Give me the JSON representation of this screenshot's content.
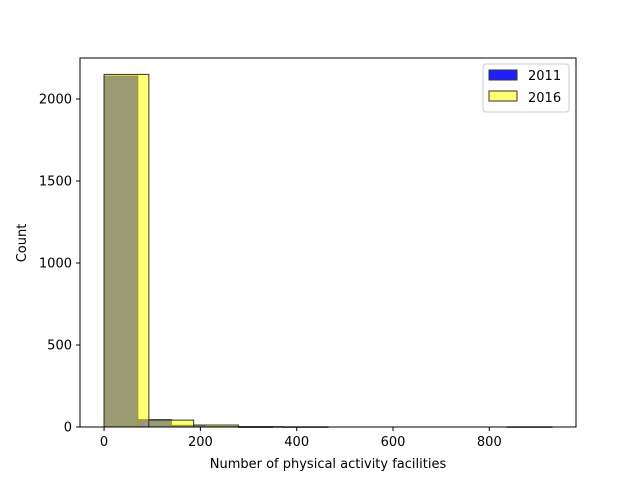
{
  "chart_data": {
    "type": "bar",
    "title": "",
    "xlabel": "Number of physical activity facilities",
    "ylabel": "Count",
    "xlim": [
      -50,
      980
    ],
    "ylim": [
      0,
      2250
    ],
    "xticks": [
      0,
      200,
      400,
      600,
      800
    ],
    "yticks": [
      0,
      500,
      1000,
      1500,
      2000
    ],
    "legend_position": "top-right",
    "grid": false,
    "series": [
      {
        "name": "2011",
        "color": "#0000ff",
        "alpha": 0.88,
        "edgecolor": "#333333",
        "bins": [
          {
            "x0": 0,
            "x1": 70,
            "count": 2140
          },
          {
            "x0": 70,
            "x1": 140,
            "count": 45
          },
          {
            "x0": 140,
            "x1": 210,
            "count": 10
          },
          {
            "x0": 210,
            "x1": 280,
            "count": 3
          },
          {
            "x0": 280,
            "x1": 350,
            "count": 1
          },
          {
            "x0": 350,
            "x1": 420,
            "count": 0
          },
          {
            "x0": 420,
            "x1": 490,
            "count": 0
          },
          {
            "x0": 490,
            "x1": 560,
            "count": 0
          },
          {
            "x0": 560,
            "x1": 630,
            "count": 0
          },
          {
            "x0": 630,
            "x1": 700,
            "count": 0
          }
        ]
      },
      {
        "name": "2016",
        "color": "#ffff00",
        "alpha": 0.55,
        "edgecolor": "#333333",
        "bins": [
          {
            "x0": 0,
            "x1": 93,
            "count": 2150
          },
          {
            "x0": 93,
            "x1": 186,
            "count": 42
          },
          {
            "x0": 186,
            "x1": 279,
            "count": 12
          },
          {
            "x0": 279,
            "x1": 372,
            "count": 2
          },
          {
            "x0": 372,
            "x1": 465,
            "count": 1
          },
          {
            "x0": 465,
            "x1": 558,
            "count": 0
          },
          {
            "x0": 558,
            "x1": 651,
            "count": 0
          },
          {
            "x0": 651,
            "x1": 744,
            "count": 0
          },
          {
            "x0": 744,
            "x1": 837,
            "count": 0
          },
          {
            "x0": 837,
            "x1": 930,
            "count": 1
          }
        ]
      }
    ]
  }
}
